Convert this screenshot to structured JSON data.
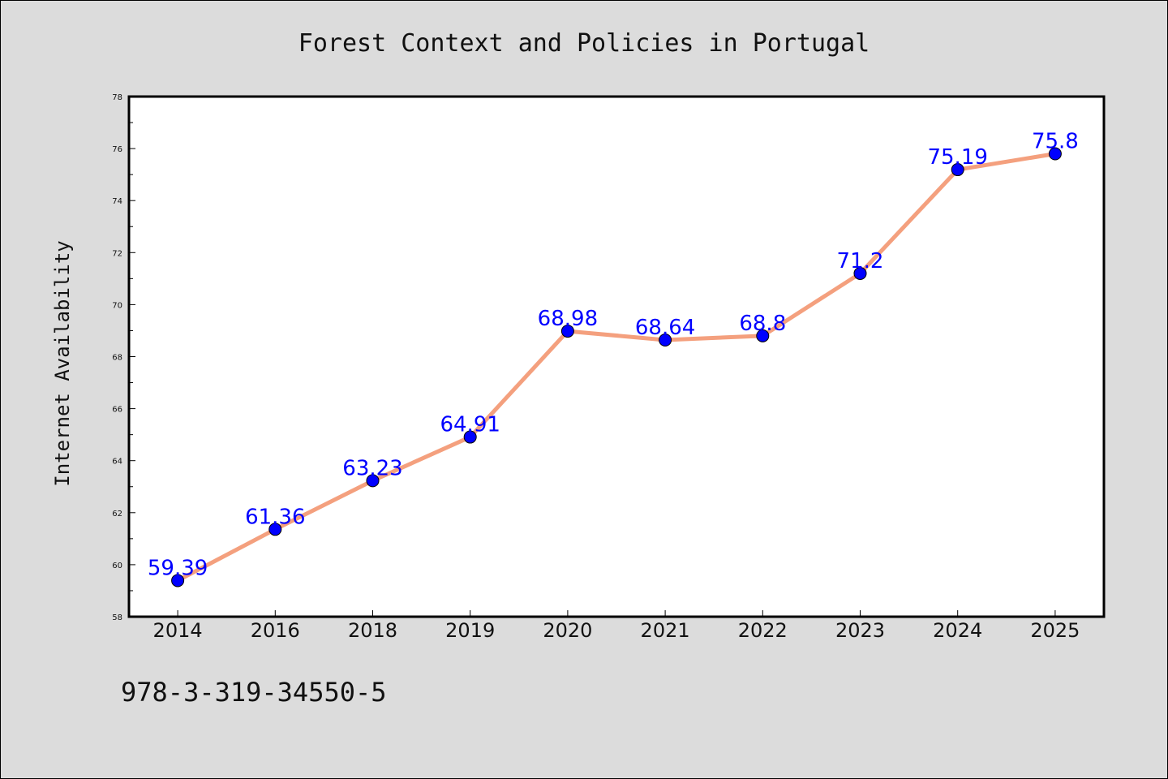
{
  "chart_data": {
    "type": "line",
    "title": "Forest Context and Policies in Portugal",
    "xlabel": "",
    "ylabel": "Internet Availability",
    "categories": [
      "2014",
      "2016",
      "2018",
      "2019",
      "2020",
      "2021",
      "2022",
      "2023",
      "2024",
      "2025"
    ],
    "series": [
      {
        "values": [
          59.39,
          61.36,
          63.23,
          64.91,
          68.98,
          68.64,
          68.8,
          71.2,
          75.19,
          75.8
        ],
        "data_labels": [
          "59.39",
          "61.36",
          "63.23",
          "64.91",
          "68.98",
          "68.64",
          "68.8",
          "71.2",
          "75.19",
          "75.8"
        ],
        "line_color": "#f4a07e",
        "marker_color": "#0000ff"
      }
    ],
    "ylim": [
      58,
      78
    ],
    "yticks": [
      "58",
      "60",
      "62",
      "64",
      "66",
      "68",
      "70",
      "72",
      "74",
      "76",
      "78"
    ],
    "grid": false,
    "legend": "none"
  },
  "footer": {
    "text": "978-3-319-34550-5"
  },
  "colors": {
    "background": "#dcdcdc",
    "plot_area": "#ffffff",
    "line": "#f4a07e",
    "marker": "#0000ff",
    "data_label": "#0000ff"
  }
}
